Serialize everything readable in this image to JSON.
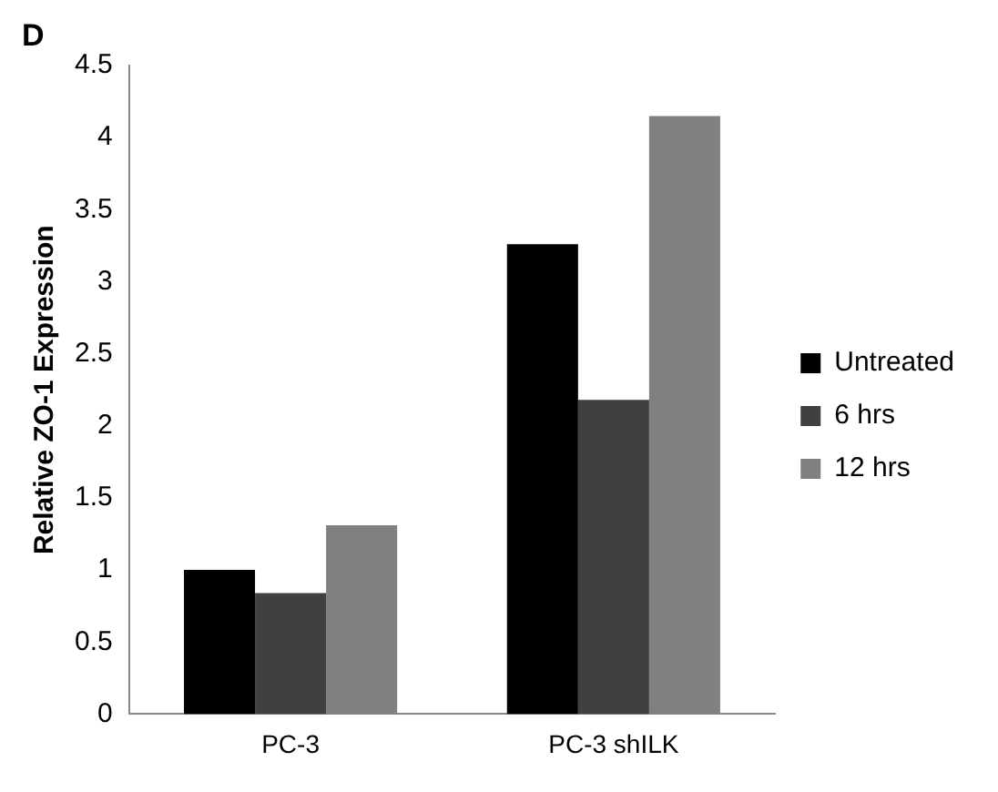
{
  "chart_data": {
    "type": "bar",
    "annotations": [
      "D"
    ],
    "ylabel": "Relative ZO-1 Expression",
    "categories": [
      "PC-3",
      "PC-3 shILK"
    ],
    "series": [
      {
        "name": "Untreated",
        "color": "#000000",
        "values": [
          1.0,
          3.26
        ]
      },
      {
        "name": "6 hrs",
        "color": "#404040",
        "values": [
          0.84,
          2.18
        ]
      },
      {
        "name": "12 hrs",
        "color": "#808080",
        "values": [
          1.31,
          4.15
        ]
      }
    ],
    "ylim": [
      0,
      4.5
    ],
    "yticks": [
      0,
      0.5,
      1,
      1.5,
      2,
      2.5,
      3,
      3.5,
      4,
      4.5
    ],
    "grid": false,
    "legend": "right"
  }
}
